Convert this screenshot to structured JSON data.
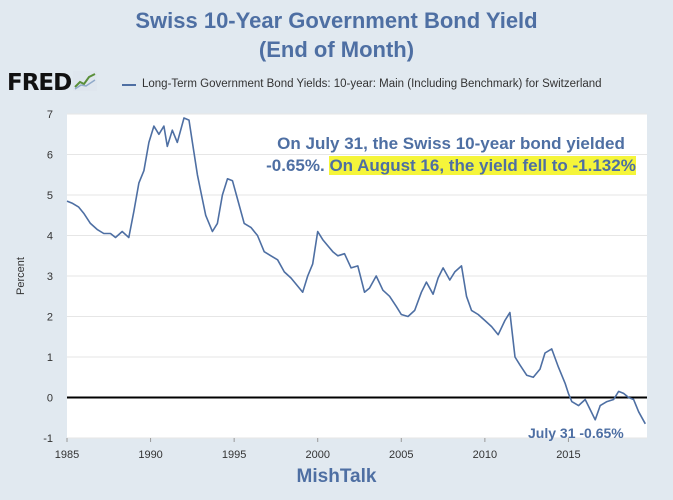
{
  "chart_data": {
    "type": "line",
    "title_line1": "Swiss 10-Year Government Bond Yield",
    "title_line2": "(End of Month)",
    "legend": "Long-Term Government Bond Yields: 10-year: Main (Including Benchmark) for Switzerland",
    "ylabel": "Percent",
    "xlabel": "",
    "xlim": [
      1985,
      2019.7
    ],
    "ylim": [
      -1,
      7
    ],
    "x_ticks": [
      "1985",
      "1990",
      "1995",
      "2000",
      "2005",
      "2010",
      "2015"
    ],
    "y_ticks": [
      "-1",
      "0",
      "1",
      "2",
      "3",
      "4",
      "5",
      "6",
      "7"
    ],
    "series": [
      {
        "name": "Long-Term Government Bond Yields: 10-year: Main (Including Benchmark) for Switzerland",
        "color": "#4e6fa3",
        "x": [
          1985.0,
          1985.3,
          1985.7,
          1986.0,
          1986.4,
          1986.8,
          1987.2,
          1987.6,
          1987.9,
          1988.3,
          1988.7,
          1989.0,
          1989.3,
          1989.6,
          1989.9,
          1990.2,
          1990.5,
          1990.8,
          1991.0,
          1991.3,
          1991.6,
          1992.0,
          1992.3,
          1992.5,
          1992.8,
          1993.0,
          1993.3,
          1993.7,
          1994.0,
          1994.3,
          1994.6,
          1994.9,
          1995.2,
          1995.6,
          1996.0,
          1996.4,
          1996.8,
          1997.2,
          1997.6,
          1998.0,
          1998.4,
          1998.8,
          1999.1,
          1999.4,
          1999.7,
          2000.0,
          2000.3,
          2000.6,
          2000.9,
          2001.2,
          2001.6,
          2002.0,
          2002.4,
          2002.8,
          2003.1,
          2003.5,
          2003.9,
          2004.3,
          2004.7,
          2005.0,
          2005.4,
          2005.8,
          2006.2,
          2006.5,
          2006.9,
          2007.2,
          2007.5,
          2007.9,
          2008.2,
          2008.6,
          2008.9,
          2009.2,
          2009.6,
          2010.0,
          2010.4,
          2010.8,
          2011.2,
          2011.5,
          2011.8,
          2012.1,
          2012.5,
          2012.9,
          2013.3,
          2013.6,
          2014.0,
          2014.4,
          2014.8,
          2015.0,
          2015.2,
          2015.6,
          2016.0,
          2016.3,
          2016.6,
          2016.9,
          2017.3,
          2017.7,
          2018.0,
          2018.3,
          2018.6,
          2018.9,
          2019.2,
          2019.6
        ],
        "values": [
          4.85,
          4.8,
          4.7,
          4.55,
          4.3,
          4.15,
          4.05,
          4.05,
          3.95,
          4.1,
          3.95,
          4.6,
          5.3,
          5.6,
          6.3,
          6.7,
          6.5,
          6.7,
          6.2,
          6.6,
          6.3,
          6.9,
          6.85,
          6.3,
          5.5,
          5.1,
          4.5,
          4.1,
          4.3,
          5.0,
          5.4,
          5.35,
          4.9,
          4.3,
          4.2,
          4.0,
          3.6,
          3.5,
          3.4,
          3.1,
          2.95,
          2.75,
          2.6,
          3.0,
          3.3,
          4.1,
          3.9,
          3.75,
          3.6,
          3.5,
          3.55,
          3.2,
          3.25,
          2.6,
          2.7,
          3.0,
          2.65,
          2.5,
          2.25,
          2.05,
          2.0,
          2.15,
          2.6,
          2.85,
          2.55,
          2.95,
          3.2,
          2.9,
          3.1,
          3.25,
          2.5,
          2.15,
          2.05,
          1.9,
          1.75,
          1.55,
          1.9,
          2.1,
          1.0,
          0.8,
          0.55,
          0.5,
          0.7,
          1.1,
          1.2,
          0.75,
          0.35,
          0.1,
          -0.1,
          -0.2,
          -0.05,
          -0.3,
          -0.55,
          -0.2,
          -0.1,
          -0.05,
          0.15,
          0.1,
          0.0,
          -0.05,
          -0.35,
          -0.65
        ]
      }
    ],
    "zero_line": true,
    "grid": "horizontal"
  },
  "annotation": {
    "part1": "On July 31, the Swiss 10-year bond yielded -0.65%. ",
    "part2": "On August 16, the yield fell to -1.132%"
  },
  "end_label": "July 31 -0.65%",
  "brand": {
    "fred": "FRED",
    "footer": "MishTalk"
  },
  "colors": {
    "line": "#4e6fa3",
    "title": "#4e6fa3",
    "highlight": "#f5f53a",
    "background": "#e1e9f0"
  }
}
